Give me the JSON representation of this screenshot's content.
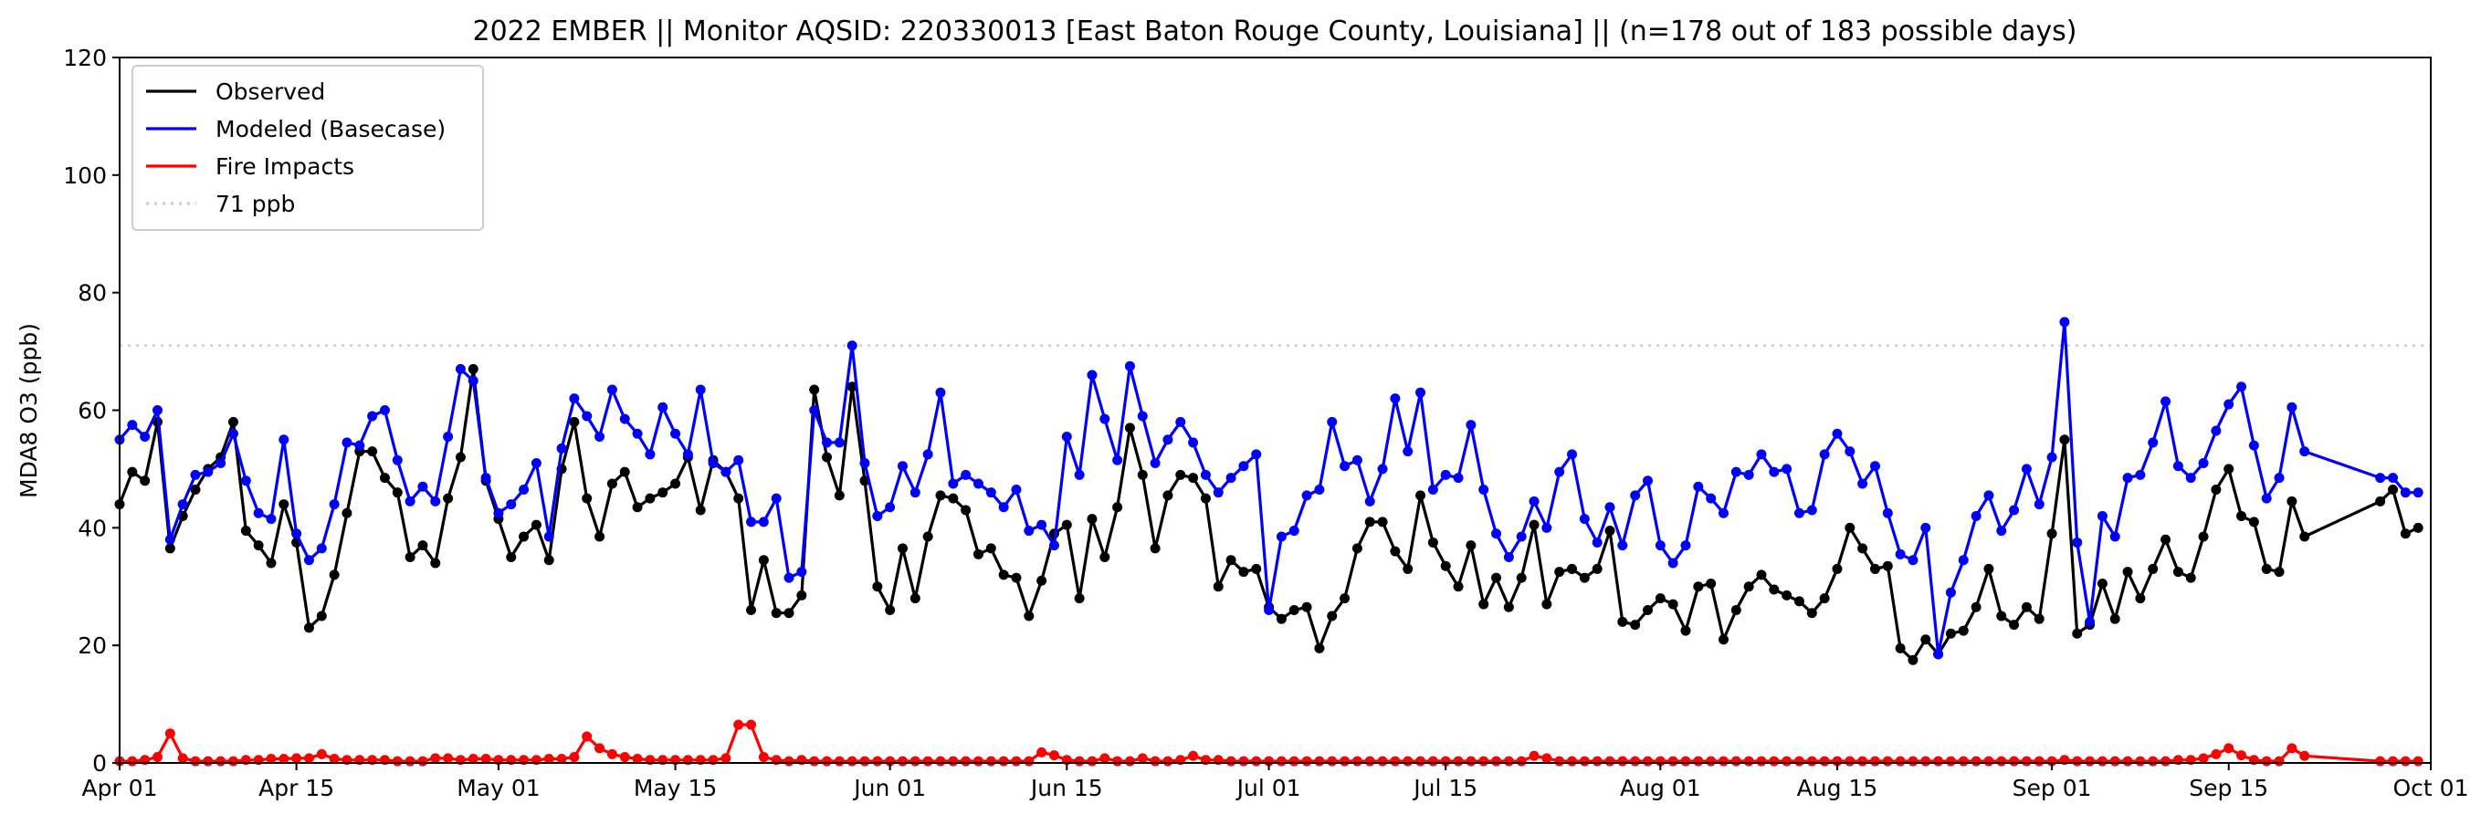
{
  "chart_data": {
    "type": "line",
    "title": "2022 EMBER || Monitor AQSID: 220330013 [East Baton Rouge County, Louisiana] || (n=178 out of 183 possible days)",
    "xlabel": "",
    "ylabel": "MDA8 O3 (ppb)",
    "ylim": [
      0,
      120
    ],
    "yticks": [
      "0",
      "20",
      "40",
      "60",
      "80",
      "100",
      "120"
    ],
    "xlim": [
      "2022-04-01",
      "2022-10-01"
    ],
    "xticks": [
      {
        "label": "Apr 01",
        "day": 0
      },
      {
        "label": "Apr 15",
        "day": 14
      },
      {
        "label": "May 01",
        "day": 30
      },
      {
        "label": "May 15",
        "day": 44
      },
      {
        "label": "Jun 01",
        "day": 61
      },
      {
        "label": "Jun 15",
        "day": 75
      },
      {
        "label": "Jul 01",
        "day": 91
      },
      {
        "label": "Jul 15",
        "day": 105
      },
      {
        "label": "Aug 01",
        "day": 122
      },
      {
        "label": "Aug 15",
        "day": 136
      },
      {
        "label": "Sep 01",
        "day": 153
      },
      {
        "label": "Sep 15",
        "day": 167
      },
      {
        "label": "Oct 01",
        "day": 183
      }
    ],
    "start_date": "2022-04-01",
    "legend_position": "top-left",
    "grid": false,
    "threshold": {
      "name": "71 ppb",
      "value": 71,
      "color": "#cccccc"
    },
    "series": [
      {
        "name": "Observed",
        "color": "#000000",
        "values": [
          44,
          49.5,
          48,
          58,
          36.5,
          42,
          46.5,
          50,
          52,
          58,
          39.5,
          37,
          34,
          44,
          37.5,
          23,
          25,
          32,
          42.5,
          53,
          53,
          48.5,
          46,
          35,
          37,
          34,
          45,
          52,
          67,
          48,
          41.5,
          35,
          38.5,
          40.5,
          34.5,
          50,
          58,
          45,
          38.5,
          47.5,
          49.5,
          43.5,
          45,
          46,
          47.5,
          52,
          43,
          51.5,
          49.5,
          45,
          26,
          34.5,
          25.5,
          25.5,
          28.5,
          63.5,
          52,
          45.5,
          64,
          48,
          30,
          26,
          36.5,
          28,
          38.5,
          45.5,
          45,
          43,
          35.5,
          36.5,
          32,
          31.5,
          25,
          31,
          39,
          40.5,
          28,
          41.5,
          35,
          43.5,
          57,
          49,
          36.5,
          45.5,
          49,
          48.5,
          45,
          30,
          34.5,
          32.5,
          33,
          26.5,
          24.5,
          26,
          26.5,
          19.5,
          25,
          28,
          36.5,
          41,
          41,
          36,
          33,
          45.5,
          37.5,
          33.5,
          30,
          37,
          27,
          31.5,
          26.5,
          31.5,
          40.5,
          27,
          32.5,
          33,
          31.5,
          33,
          39.5,
          24,
          23.5,
          26,
          28,
          27,
          22.5,
          30,
          30.5,
          21,
          26,
          30,
          32,
          29.5,
          28.5,
          27.5,
          25.5,
          28,
          33,
          40,
          36.5,
          33,
          33.5,
          19.5,
          17.5,
          21,
          18.5,
          22,
          22.5,
          26.5,
          33,
          25,
          23.5,
          26.5,
          24.5,
          39,
          55,
          22,
          23.5,
          30.5,
          24.5,
          32.5,
          28,
          33,
          38,
          32.5,
          31.5,
          38.5,
          46.5,
          50,
          42,
          41,
          33,
          32.5,
          44.5,
          38.5,
          null,
          null,
          null,
          null,
          null,
          44.5,
          46.5,
          39,
          40
        ]
      },
      {
        "name": "Modeled (Basecase)",
        "color": "#0000ff",
        "values": [
          55,
          57.5,
          55.5,
          60,
          38,
          44,
          49,
          49.5,
          51,
          56,
          48,
          42.5,
          41.5,
          55,
          39,
          34.5,
          36.5,
          44,
          54.5,
          54,
          59,
          60,
          51.5,
          44.5,
          47,
          44.5,
          55.5,
          67,
          65,
          48.5,
          42.5,
          44,
          46.5,
          51,
          38.5,
          53.5,
          62,
          59,
          55.5,
          63.5,
          58.5,
          56,
          52.5,
          60.5,
          56,
          52.5,
          63.5,
          51,
          49.5,
          51.5,
          41,
          41,
          45,
          31.5,
          32.5,
          60,
          54.5,
          54.5,
          71,
          51,
          42,
          43.5,
          50.5,
          46,
          52.5,
          63,
          47.5,
          49,
          47.5,
          46,
          43.5,
          46.5,
          39.5,
          40.5,
          37,
          55.5,
          49,
          66,
          58.5,
          51.5,
          67.5,
          59,
          51,
          55,
          58,
          54.5,
          49,
          46,
          48.5,
          50.5,
          52.5,
          26,
          38.5,
          39.5,
          45.5,
          46.5,
          58,
          50.5,
          51.5,
          44.5,
          50,
          62,
          53,
          63,
          46.5,
          49,
          48.5,
          57.5,
          46.5,
          39,
          35,
          38.5,
          44.5,
          40,
          49.5,
          52.5,
          41.5,
          37.5,
          43.5,
          37,
          45.5,
          48,
          37,
          34,
          37,
          47,
          45,
          42.5,
          49.5,
          49,
          52.5,
          49.5,
          50,
          42.5,
          43,
          52.5,
          56,
          53,
          47.5,
          50.5,
          42.5,
          35.5,
          34.5,
          40,
          18.5,
          29,
          34.5,
          42,
          45.5,
          39.5,
          43,
          50,
          44,
          52,
          75,
          37.5,
          24,
          42,
          38.5,
          48.5,
          49,
          54.5,
          61.5,
          50.5,
          48.5,
          51,
          56.5,
          61,
          64,
          54,
          45,
          48.5,
          60.5,
          53,
          null,
          null,
          null,
          null,
          null,
          48.5,
          48.5,
          46,
          46
        ]
      },
      {
        "name": "Fire Impacts",
        "color": "#ff0000",
        "values": [
          0.3,
          0.3,
          0.5,
          1,
          5,
          0.8,
          0.3,
          0.3,
          0.3,
          0.3,
          0.5,
          0.5,
          0.7,
          0.7,
          0.8,
          0.8,
          1.5,
          0.7,
          0.5,
          0.5,
          0.5,
          0.5,
          0.3,
          0.3,
          0.3,
          0.8,
          0.8,
          0.5,
          0.7,
          0.7,
          0.5,
          0.5,
          0.5,
          0.5,
          0.7,
          0.7,
          1,
          4.5,
          2.5,
          1.5,
          1,
          0.7,
          0.5,
          0.5,
          0.5,
          0.5,
          0.5,
          0.5,
          0.8,
          6.5,
          6.5,
          1,
          0.5,
          0.3,
          0.5,
          0.3,
          0.3,
          0.3,
          0.3,
          0.3,
          0.3,
          0.3,
          0.3,
          0.3,
          0.3,
          0.3,
          0.3,
          0.3,
          0.3,
          0.3,
          0.3,
          0.3,
          0.3,
          1.8,
          1.3,
          0.5,
          0.3,
          0.3,
          0.8,
          0.3,
          0.3,
          0.8,
          0.3,
          0.3,
          0.5,
          1.2,
          0.5,
          0.5,
          0.3,
          0.3,
          0.3,
          0.3,
          0.3,
          0.3,
          0.3,
          0.3,
          0.3,
          0.3,
          0.3,
          0.3,
          0.3,
          0.3,
          0.3,
          0.3,
          0.3,
          0.3,
          0.3,
          0.3,
          0.3,
          0.3,
          0.3,
          0.3,
          1.2,
          0.8,
          0.3,
          0.3,
          0.3,
          0.3,
          0.3,
          0.3,
          0.3,
          0.3,
          0.3,
          0.3,
          0.3,
          0.3,
          0.3,
          0.3,
          0.3,
          0.3,
          0.3,
          0.3,
          0.3,
          0.3,
          0.3,
          0.3,
          0.3,
          0.3,
          0.3,
          0.3,
          0.3,
          0.3,
          0.3,
          0.3,
          0.3,
          0.3,
          0.3,
          0.3,
          0.3,
          0.3,
          0.3,
          0.3,
          0.3,
          0.3,
          0.5,
          0.3,
          0.3,
          0.3,
          0.3,
          0.3,
          0.3,
          0.3,
          0.3,
          0.5,
          0.5,
          0.8,
          1.5,
          2.5,
          1.3,
          0.5,
          0.3,
          0.3,
          2.5,
          1.2,
          null,
          null,
          null,
          null,
          null,
          0.3,
          0.3,
          0.3,
          0.3
        ]
      }
    ]
  }
}
